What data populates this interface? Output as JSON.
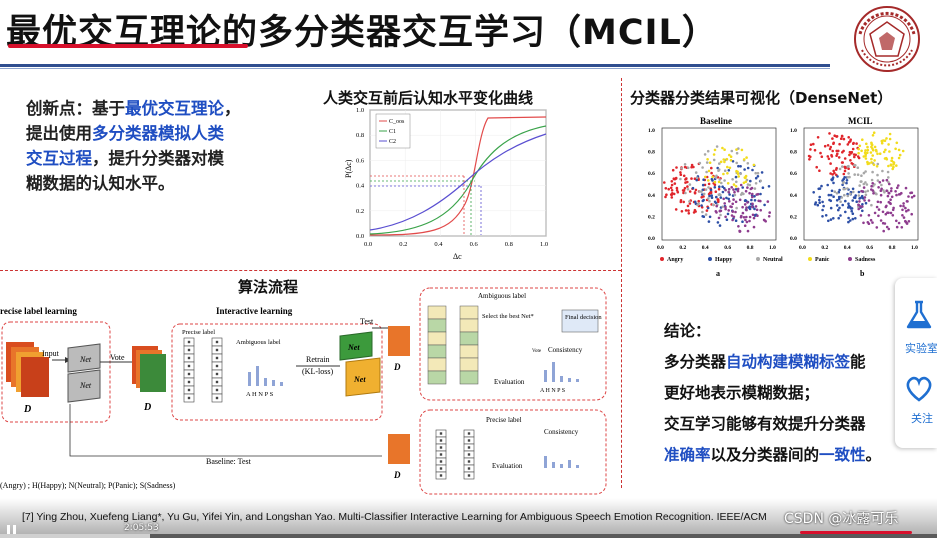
{
  "slide": {
    "title_prefix": "最优交互理论",
    "title_rest": "的多分类器交互学习（MCIL）",
    "innovation": {
      "label": "创新点：",
      "t1": "基于",
      "b1": "最优交互理论",
      "t2": "，",
      "t3": "提出使用",
      "b2": "多分类器模拟人类",
      "b3": "交互过程",
      "t4": "，提升分类器对模",
      "t5": "糊数据的认知水平。"
    },
    "curve_title": "人类交互前后认知水平变化曲线",
    "viz_title": "分类器分类结果可视化（DenseNet）",
    "algo_title": "算法流程",
    "curve": {
      "ylabel": "P(Δc)",
      "xlabel": "Δc",
      "legend": [
        "C_oos",
        "C1",
        "C2"
      ],
      "x_ticks": [
        "0.0",
        "0.2",
        "0.4",
        "0.6",
        "0.8",
        "1.0"
      ],
      "y_ticks": [
        "1.0",
        "0.8",
        "0.6",
        "0.4",
        "0.2",
        "0.0"
      ]
    },
    "viz": {
      "panel_a_title": "Baseline",
      "panel_b_title": "MCIL",
      "panel_a_label": "a",
      "panel_b_label": "b",
      "ticks": [
        "0.0",
        "0.2",
        "0.4",
        "0.6",
        "0.8",
        "1.0"
      ],
      "legend": [
        "Angry",
        "Happy",
        "Neutral",
        "Panic",
        "Sadness"
      ],
      "colors": {
        "angry": "#e0262c",
        "happy": "#2d4fa6",
        "neutral": "#a8a8a8",
        "panic": "#f2dc1c",
        "sadness": "#8e3c8e"
      }
    },
    "algo": {
      "precise_label_learning": "recise label learning",
      "interactive_learning": "Interactive learning",
      "input": "Input",
      "vote": "Vote",
      "net1": "Net",
      "neti": "Net",
      "d1": "D",
      "d2": "D",
      "d3": "D",
      "precise_label": "Precise label",
      "ambiguous_label": "Ambiguous label",
      "retrain": "Retrain",
      "kl_loss": "(KL-loss)",
      "test": "Test",
      "ahnps": "A H N P S",
      "select_best": "Select the best Net*",
      "final_decision": "Final decision",
      "consistency": "Consistency",
      "evaluation": "Evaluation",
      "baseline_test": "Baseline: Test",
      "precise_label2": "Precise label",
      "consistency2": "Consistency",
      "evaluation2": "Evaluation",
      "vote_small": "Vote",
      "ambiguous_label2": "Ambiguous label",
      "classes_caption": "(Angry) ; H(Happy); N(Neutral); P(Panic); S(Sadness)"
    },
    "conclusion": {
      "label": "结论：",
      "l1a": "多分类器",
      "l1b": "自动构建模糊标签",
      "l1c": "能",
      "l2": "更好地表示模糊数据；",
      "l3": "交互学习能够有效提升分类器",
      "l4a": "准确率",
      "l4b": "以及分类器间的",
      "l4c": "一致性",
      "l4d": "。"
    },
    "side_panel": {
      "item1": "实验室",
      "item2": "关注"
    },
    "reference": "[7] Ying Zhou, Xuefeng Liang*, Yu Gu, Yifei Yin, and Longshan Yao. Multi-Classifier Interactive Learning for Ambiguous Speech Emotion Recognition. IEEE/ACM",
    "watermark": "CSDN @冰露可乐",
    "timestamp": "2:05:53",
    "progress": 0.16
  }
}
